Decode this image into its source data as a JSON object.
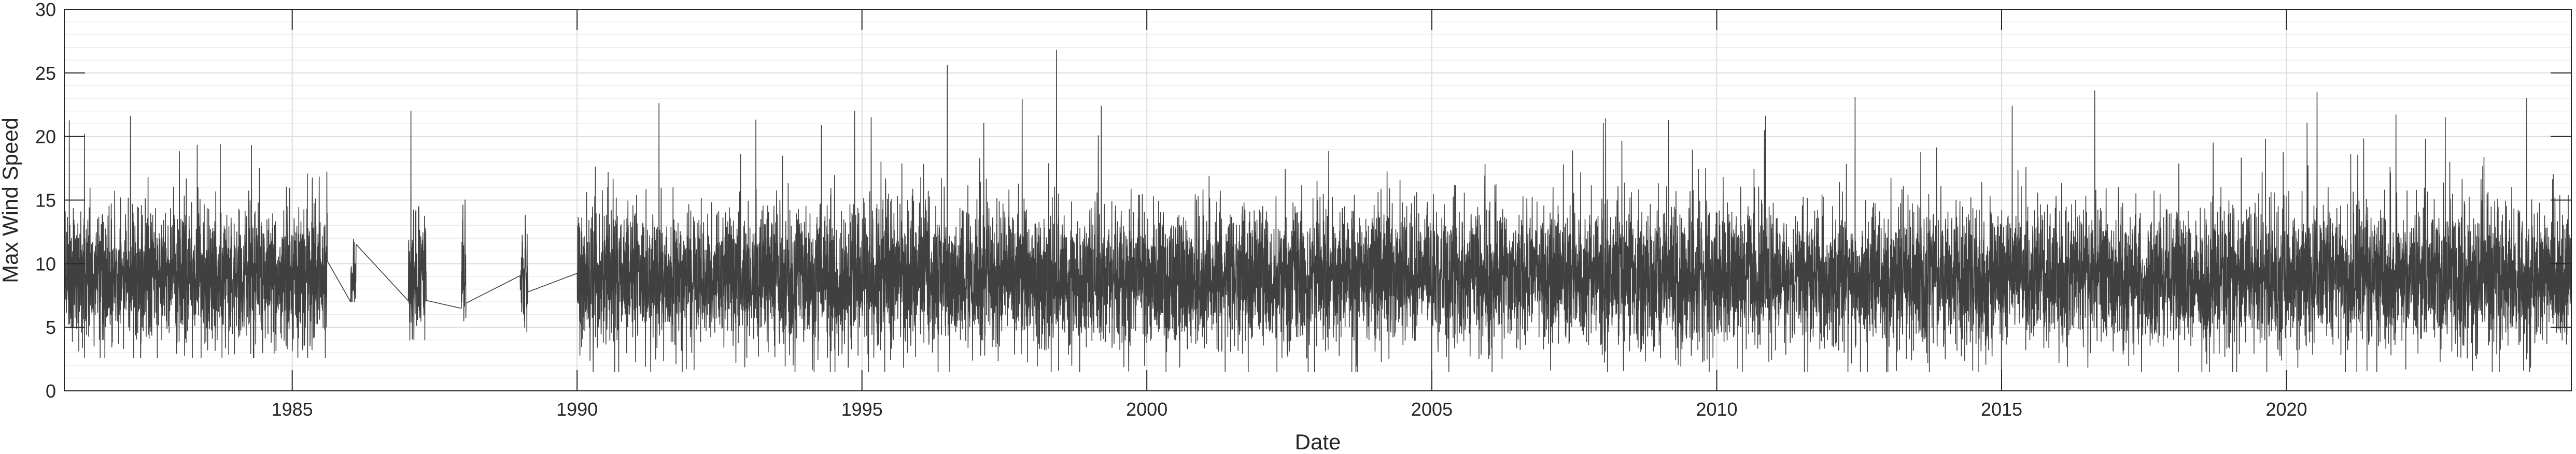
{
  "chart_data": {
    "type": "line",
    "title": "",
    "xlabel": "Date",
    "ylabel": "Max Wind Speed",
    "x_range": [
      "1981-01-01",
      "2024-12-31"
    ],
    "ylim": [
      0,
      30
    ],
    "x_ticks": [
      "1985",
      "1990",
      "1995",
      "2000",
      "2005",
      "2010",
      "2015",
      "2020"
    ],
    "y_ticks": [
      "0",
      "5",
      "10",
      "15",
      "20",
      "25",
      "30"
    ],
    "grid": true,
    "minor_grid": true,
    "legend": "none",
    "line_color": "#404040",
    "series": [
      {
        "segments": [
          {
            "start": "1981-01-01",
            "end": "1985-08-15",
            "mean": 9.0,
            "spread": 2.6,
            "min": 2.6,
            "max": 21.6
          },
          {
            "start": "1986-01-10",
            "end": "1986-02-15",
            "mean": 8.6,
            "spread": 1.8,
            "min": 7.0,
            "max": 12.0
          },
          {
            "start": "1987-01-15",
            "end": "1987-05-10",
            "mean": 9.0,
            "spread": 2.4,
            "min": 4.0,
            "max": 22.0
          },
          {
            "start": "1987-12-20",
            "end": "1988-01-20",
            "mean": 9.2,
            "spread": 2.2,
            "min": 5.5,
            "max": 15.5
          },
          {
            "start": "1989-01-01",
            "end": "1989-02-20",
            "mean": 8.8,
            "spread": 2.2,
            "min": 4.0,
            "max": 13.8
          },
          {
            "start": "1990-01-01",
            "end": "2024-12-31",
            "mean": 8.9,
            "spread": 2.7,
            "min": 1.5,
            "max": 26.8
          }
        ],
        "peaks": [
          {
            "date": "1981-05-10",
            "value": 20.2
          },
          {
            "date": "1982-03-01",
            "value": 21.6
          },
          {
            "date": "1984-04-15",
            "value": 19.3
          },
          {
            "date": "1987-02-01",
            "value": 22.0
          },
          {
            "date": "1991-06-10",
            "value": 22.6
          },
          {
            "date": "1993-02-20",
            "value": 21.3
          },
          {
            "date": "1994-11-15",
            "value": 22.0
          },
          {
            "date": "1995-03-01",
            "value": 21.5
          },
          {
            "date": "1996-07-01",
            "value": 25.6
          },
          {
            "date": "1998-06-01",
            "value": 26.8
          },
          {
            "date": "1999-03-15",
            "value": 22.4
          },
          {
            "date": "2008-01-20",
            "value": 21.4
          },
          {
            "date": "2010-11-10",
            "value": 21.6
          },
          {
            "date": "2015-03-10",
            "value": 22.4
          },
          {
            "date": "2016-08-20",
            "value": 23.6
          },
          {
            "date": "2019-08-20",
            "value": 19.8
          },
          {
            "date": "2020-07-15",
            "value": 23.5
          },
          {
            "date": "2022-06-10",
            "value": 19.8
          },
          {
            "date": "2024-03-20",
            "value": 23.0
          }
        ]
      }
    ]
  }
}
